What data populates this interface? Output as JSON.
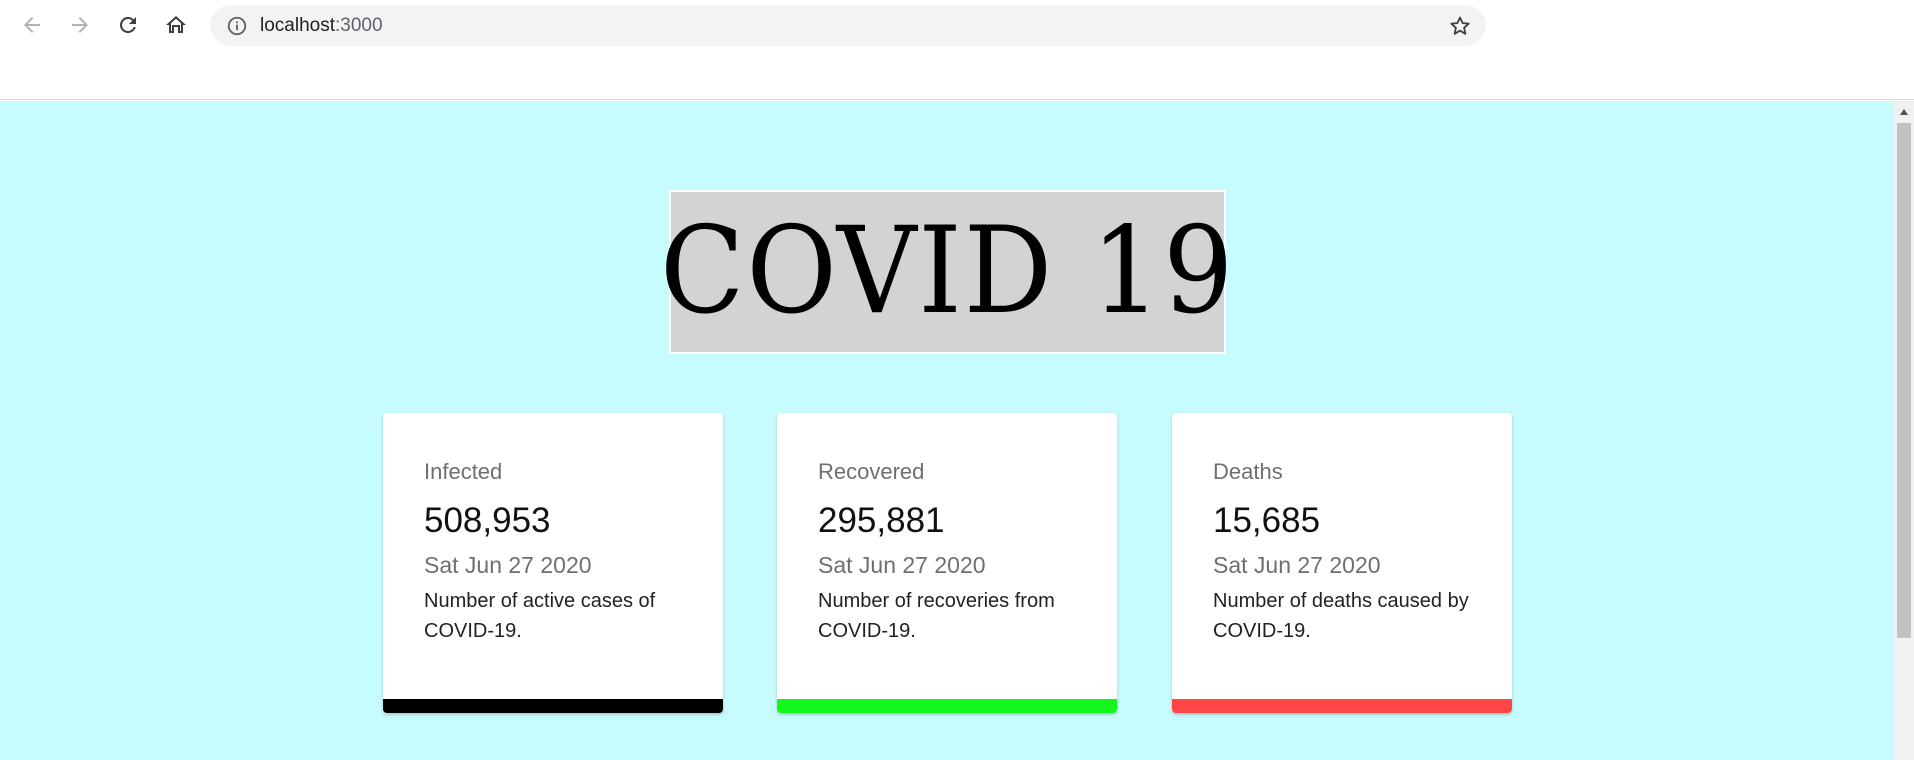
{
  "browser": {
    "url_host": "localhost",
    "url_port": ":3000",
    "icons": {
      "back": "back-arrow-icon",
      "forward": "forward-arrow-icon",
      "reload": "reload-icon",
      "home": "home-icon",
      "info": "info-icon",
      "bookmark": "star-icon"
    }
  },
  "page": {
    "background": "#c7fcfe",
    "title": "COVID 19",
    "cards": [
      {
        "label": "Infected",
        "value": "508,953",
        "date": "Sat Jun 27 2020",
        "description": "Number of active cases of COVID-19.",
        "color": "#000000"
      },
      {
        "label": "Recovered",
        "value": "295,881",
        "date": "Sat Jun 27 2020",
        "description": "Number of recoveries from COVID-19.",
        "color": "#12f719"
      },
      {
        "label": "Deaths",
        "value": "15,685",
        "date": "Sat Jun 27 2020",
        "description": "Number of deaths caused by COVID-19.",
        "color": "#ff4545"
      }
    ]
  }
}
